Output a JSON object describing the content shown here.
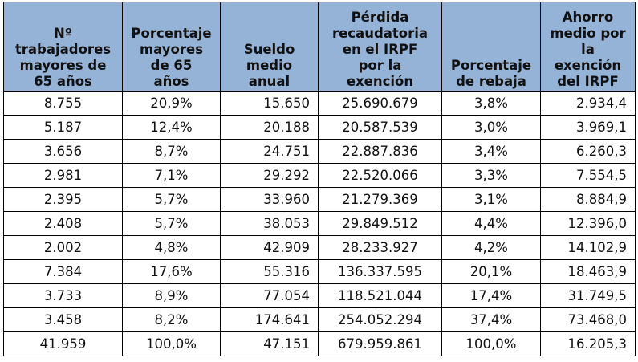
{
  "table": {
    "headers": [
      [
        "Nº",
        "trabajadores",
        "mayores de",
        "65 años"
      ],
      [
        "Porcentaje",
        "mayores",
        "de 65",
        "años"
      ],
      [
        "Sueldo",
        "medio",
        "anual"
      ],
      [
        "Pérdida",
        "recaudatoria",
        "en el IRPF",
        "por la",
        "exención"
      ],
      [
        "Porcentaje",
        "de rebaja"
      ],
      [
        "Ahorro",
        "medio por",
        "la",
        "exención",
        "del IRPF"
      ]
    ],
    "rows": [
      [
        "8.755",
        "20,9%",
        "15.650",
        "25.690.679",
        "3,8%",
        "2.934,4"
      ],
      [
        "5.187",
        "12,4%",
        "20.188",
        "20.587.539",
        "3,0%",
        "3.969,1"
      ],
      [
        "3.656",
        "8,7%",
        "24.751",
        "22.887.836",
        "3,4%",
        "6.260,3"
      ],
      [
        "2.981",
        "7,1%",
        "29.292",
        "22.520.066",
        "3,3%",
        "7.554,5"
      ],
      [
        "2.395",
        "5,7%",
        "33.960",
        "21.279.369",
        "3,1%",
        "8.884,9"
      ],
      [
        "2.408",
        "5,7%",
        "38.053",
        "29.849.512",
        "4,4%",
        "12.396,0"
      ],
      [
        "2.002",
        "4,8%",
        "42.909",
        "28.233.927",
        "4,2%",
        "14.102,9"
      ],
      [
        "7.384",
        "17,6%",
        "55.316",
        "136.337.595",
        "20,1%",
        "18.463,9"
      ],
      [
        "3.733",
        "8,9%",
        "77.054",
        "118.521.044",
        "17,4%",
        "31.749,5"
      ],
      [
        "3.458",
        "8,2%",
        "174.641",
        "254.052.294",
        "37,4%",
        "73.468,0"
      ],
      [
        "41.959",
        "100,0%",
        "47.151",
        "679.959.861",
        "100,0%",
        "16.205,3"
      ]
    ],
    "colors": {
      "header_bg": "#95b3d7",
      "border": "#000000"
    }
  }
}
